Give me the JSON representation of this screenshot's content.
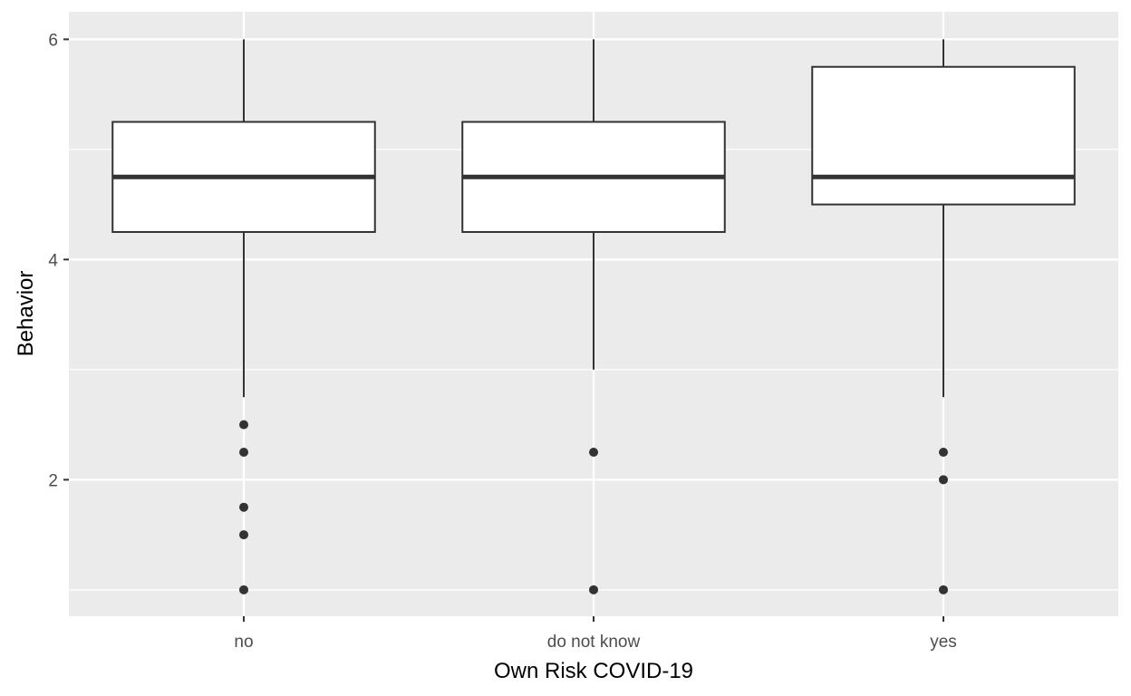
{
  "chart_data": {
    "type": "boxplot",
    "xlabel": "Own Risk COVID-19",
    "ylabel": "Behavior",
    "categories": [
      "no",
      "do not know",
      "yes"
    ],
    "ylim": [
      0.76,
      6.25
    ],
    "yticks": [
      2,
      4,
      6
    ],
    "ytick_labels": [
      "2",
      "4",
      "6"
    ],
    "grid": true,
    "boxes": [
      {
        "category": "no",
        "whisker_low": 2.75,
        "q1": 4.25,
        "median": 4.75,
        "q3": 5.25,
        "whisker_high": 6,
        "outliers": [
          2.5,
          2.25,
          1.75,
          1.5,
          1.0
        ]
      },
      {
        "category": "do not know",
        "whisker_low": 3.0,
        "q1": 4.25,
        "median": 4.75,
        "q3": 5.25,
        "whisker_high": 6,
        "outliers": [
          2.25,
          1.0
        ]
      },
      {
        "category": "yes",
        "whisker_low": 2.75,
        "q1": 4.5,
        "median": 4.75,
        "q3": 5.75,
        "whisker_high": 6,
        "outliers": [
          2.25,
          2.0,
          1.0
        ]
      }
    ],
    "colors": {
      "panel": "#ebebeb",
      "grid_major": "#ffffff",
      "box_fill": "#ffffff",
      "box_line": "#333333",
      "outlier": "#333333",
      "tick": "#333333"
    }
  }
}
